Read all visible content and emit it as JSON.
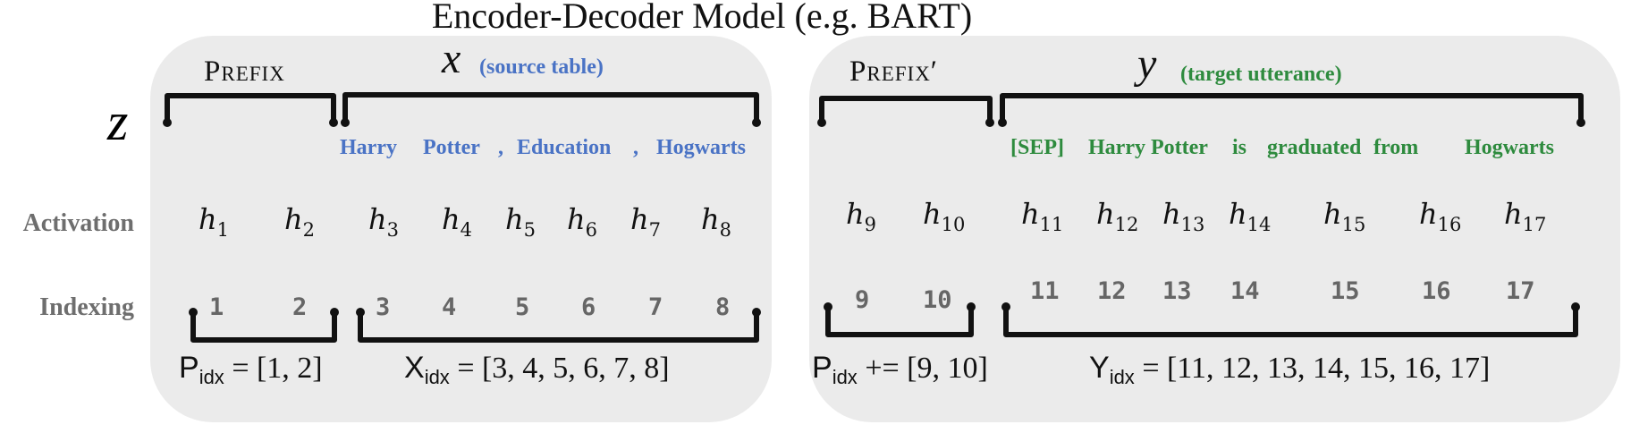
{
  "title": "Encoder-Decoder Model  (e.g. BART)",
  "z_label": "z",
  "row_labels": {
    "activation": "Activation",
    "indexing": "Indexing"
  },
  "encoder": {
    "prefix_label": "Prefix",
    "var_label": "x",
    "var_caption": "(source table)",
    "tokens": [
      "Harry",
      "Potter",
      ",",
      "Education",
      ",",
      "Hogwarts"
    ],
    "activations": [
      {
        "base": "h",
        "sub": "1"
      },
      {
        "base": "h",
        "sub": "2"
      },
      {
        "base": "h",
        "sub": "3"
      },
      {
        "base": "h",
        "sub": "4"
      },
      {
        "base": "h",
        "sub": "5"
      },
      {
        "base": "h",
        "sub": "6"
      },
      {
        "base": "h",
        "sub": "7"
      },
      {
        "base": "h",
        "sub": "8"
      }
    ],
    "indices": [
      "1",
      "2",
      "3",
      "4",
      "5",
      "6",
      "7",
      "8"
    ],
    "prefix_formula": {
      "name": "P",
      "sub": "idx",
      "rhs": " = [1, 2]"
    },
    "x_formula": {
      "name": "X",
      "sub": "idx",
      "rhs": " = [3, 4, 5, 6, 7, 8]"
    }
  },
  "decoder": {
    "prefix_label": "Prefix′",
    "var_label": "y",
    "var_caption": "(target utterance)",
    "tokens": [
      "[SEP]",
      "Harry",
      "Potter",
      "is",
      "graduated",
      "from",
      "Hogwarts"
    ],
    "activations": [
      {
        "base": "h",
        "sub": "9"
      },
      {
        "base": "h",
        "sub": "10"
      },
      {
        "base": "h",
        "sub": "11"
      },
      {
        "base": "h",
        "sub": "12"
      },
      {
        "base": "h",
        "sub": "13"
      },
      {
        "base": "h",
        "sub": "14"
      },
      {
        "base": "h",
        "sub": "15"
      },
      {
        "base": "h",
        "sub": "16"
      },
      {
        "base": "h",
        "sub": "17"
      }
    ],
    "indices": [
      "9",
      "10",
      "11",
      "12",
      "13",
      "14",
      "15",
      "16",
      "17"
    ],
    "prefix_formula": {
      "name": "P",
      "sub": "idx",
      "rhs": " += [9, 10]"
    },
    "y_formula": {
      "name": "Y",
      "sub": "idx",
      "rhs": " = [11, 12, 13, 14, 15, 16, 17]"
    }
  },
  "colors": {
    "panel": "#ebebeb",
    "source_blue": "#4a73c5",
    "target_green": "#2e8b3e",
    "label_gray": "#6e6e6e"
  }
}
